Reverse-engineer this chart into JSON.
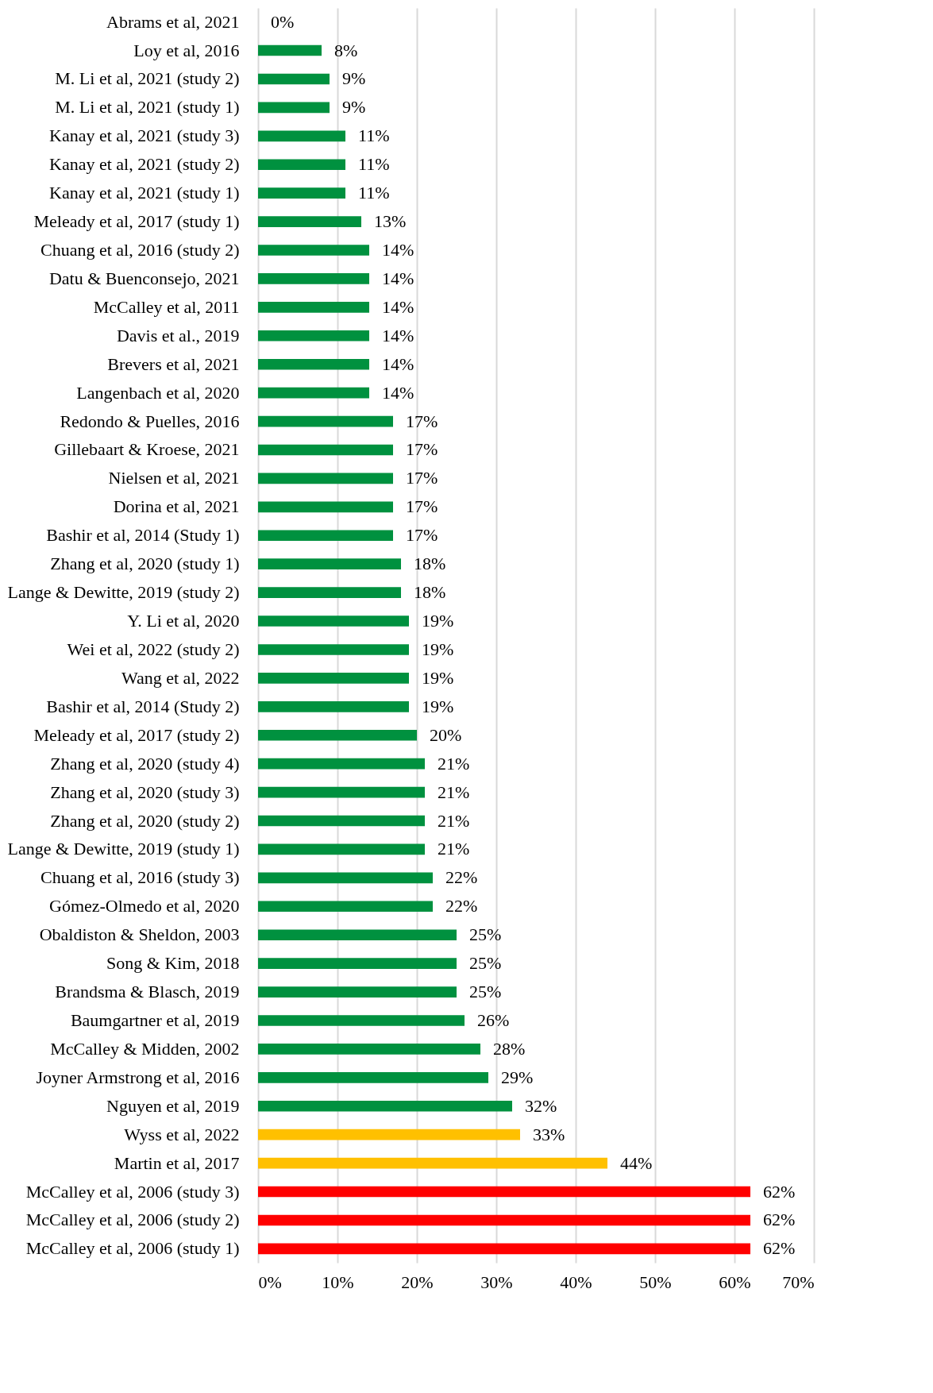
{
  "chart_data": {
    "type": "bar",
    "orientation": "horizontal",
    "grid": "x",
    "categories": [
      "Abrams et al, 2021",
      "Loy et al, 2016",
      "M. Li et al, 2021 (study 2)",
      "M. Li et al, 2021 (study 1)",
      "Kanay et al, 2021 (study 3)",
      "Kanay et al, 2021 (study 2)",
      "Kanay et al, 2021 (study 1)",
      "Meleady et al, 2017 (study 1)",
      "Chuang et al, 2016 (study 2)",
      "Datu & Buenconsejo, 2021",
      "McCalley et al, 2011",
      "Davis et al., 2019",
      "Brevers et al, 2021",
      "Langenbach et al, 2020",
      "Redondo & Puelles, 2016",
      "Gillebaart & Kroese, 2021",
      "Nielsen et al, 2021",
      "Dorina et al, 2021",
      "Bashir et al, 2014 (Study 1)",
      "Zhang et al, 2020 (study 1)",
      "Lange & Dewitte, 2019 (study 2)",
      "Y. Li et al, 2020",
      "Wei et al, 2022 (study 2)",
      "Wang et al, 2022",
      "Bashir et al, 2014 (Study 2)",
      "Meleady et al, 2017 (study 2)",
      "Zhang et al, 2020 (study 4)",
      "Zhang et al, 2020 (study 3)",
      "Zhang et al, 2020 (study 2)",
      "Lange & Dewitte, 2019 (study 1)",
      "Chuang et al, 2016 (study 3)",
      "Gómez-Olmedo et al, 2020",
      "Obaldiston & Sheldon, 2003",
      "Song & Kim, 2018",
      "Brandsma & Blasch, 2019",
      "Baumgartner et al, 2019",
      "McCalley & Midden, 2002",
      "Joyner Armstrong et al, 2016",
      "Nguyen et al, 2019",
      "Wyss et al, 2022",
      "Martin et al, 2017",
      "McCalley et al, 2006 (study 3)",
      "McCalley et al, 2006 (study 2)",
      "McCalley et al, 2006 (study 1)"
    ],
    "values": [
      0,
      8,
      9,
      9,
      11,
      11,
      11,
      13,
      14,
      14,
      14,
      14,
      14,
      14,
      17,
      17,
      17,
      17,
      17,
      18,
      18,
      19,
      19,
      19,
      19,
      20,
      21,
      21,
      21,
      21,
      22,
      22,
      25,
      25,
      25,
      26,
      28,
      29,
      32,
      33,
      44,
      62,
      62,
      62
    ],
    "value_labels": [
      "0%",
      "8%",
      "9%",
      "9%",
      "11%",
      "11%",
      "11%",
      "13%",
      "14%",
      "14%",
      "14%",
      "14%",
      "14%",
      "14%",
      "17%",
      "17%",
      "17%",
      "17%",
      "17%",
      "18%",
      "18%",
      "19%",
      "19%",
      "19%",
      "19%",
      "20%",
      "21%",
      "21%",
      "21%",
      "21%",
      "22%",
      "22%",
      "25%",
      "25%",
      "25%",
      "26%",
      "28%",
      "29%",
      "32%",
      "33%",
      "44%",
      "62%",
      "62%",
      "62%"
    ],
    "colors": [
      "#00913f",
      "#00913f",
      "#00913f",
      "#00913f",
      "#00913f",
      "#00913f",
      "#00913f",
      "#00913f",
      "#00913f",
      "#00913f",
      "#00913f",
      "#00913f",
      "#00913f",
      "#00913f",
      "#00913f",
      "#00913f",
      "#00913f",
      "#00913f",
      "#00913f",
      "#00913f",
      "#00913f",
      "#00913f",
      "#00913f",
      "#00913f",
      "#00913f",
      "#00913f",
      "#00913f",
      "#00913f",
      "#00913f",
      "#00913f",
      "#00913f",
      "#00913f",
      "#00913f",
      "#00913f",
      "#00913f",
      "#00913f",
      "#00913f",
      "#00913f",
      "#00913f",
      "#ffc000",
      "#ffc000",
      "#ff0000",
      "#ff0000",
      "#ff0000"
    ],
    "xlim": [
      0,
      70
    ],
    "xticks": [
      {
        "value": 0,
        "label": "0%"
      },
      {
        "value": 10,
        "label": "10%"
      },
      {
        "value": 20,
        "label": "20%"
      },
      {
        "value": 30,
        "label": "30%"
      },
      {
        "value": 40,
        "label": "40%"
      },
      {
        "value": 50,
        "label": "50%"
      },
      {
        "value": 60,
        "label": "60%"
      },
      {
        "value": 70,
        "label": "70%"
      }
    ]
  }
}
